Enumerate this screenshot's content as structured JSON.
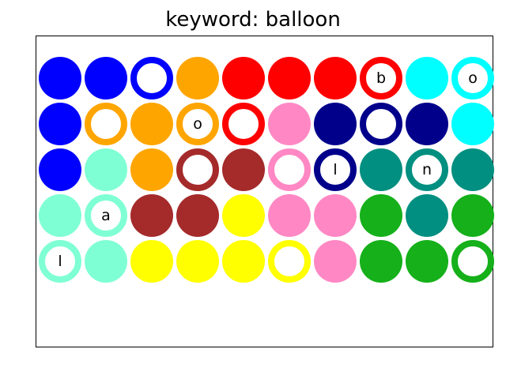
{
  "title": "keyword: balloon",
  "colors": {
    "blue": "#0000ff",
    "orange": "#ffa500",
    "red": "#ff0000",
    "cyan": "#00ffff",
    "navy": "#00008b",
    "pink": "#ff88c4",
    "aquamarine": "#7fffd4",
    "brown": "#a52a2a",
    "teal": "#008f80",
    "yellow": "#ffff00",
    "green": "#15b01a"
  },
  "grid": [
    [
      {
        "color": "blue",
        "style": "filled",
        "letter": ""
      },
      {
        "color": "blue",
        "style": "filled",
        "letter": ""
      },
      {
        "color": "blue",
        "style": "ring",
        "letter": ""
      },
      {
        "color": "orange",
        "style": "filled",
        "letter": ""
      },
      {
        "color": "red",
        "style": "filled",
        "letter": ""
      },
      {
        "color": "red",
        "style": "filled",
        "letter": ""
      },
      {
        "color": "red",
        "style": "filled",
        "letter": ""
      },
      {
        "color": "red",
        "style": "ring",
        "letter": "b"
      },
      {
        "color": "cyan",
        "style": "filled",
        "letter": ""
      },
      {
        "color": "cyan",
        "style": "ring",
        "letter": "o"
      }
    ],
    [
      {
        "color": "blue",
        "style": "filled",
        "letter": ""
      },
      {
        "color": "orange",
        "style": "ring",
        "letter": ""
      },
      {
        "color": "orange",
        "style": "filled",
        "letter": ""
      },
      {
        "color": "orange",
        "style": "ring",
        "letter": "o"
      },
      {
        "color": "red",
        "style": "ring",
        "letter": ""
      },
      {
        "color": "pink",
        "style": "filled",
        "letter": ""
      },
      {
        "color": "navy",
        "style": "filled",
        "letter": ""
      },
      {
        "color": "navy",
        "style": "ring",
        "letter": ""
      },
      {
        "color": "navy",
        "style": "filled",
        "letter": ""
      },
      {
        "color": "cyan",
        "style": "filled",
        "letter": ""
      }
    ],
    [
      {
        "color": "blue",
        "style": "filled",
        "letter": ""
      },
      {
        "color": "aquamarine",
        "style": "filled",
        "letter": ""
      },
      {
        "color": "orange",
        "style": "filled",
        "letter": ""
      },
      {
        "color": "brown",
        "style": "ring",
        "letter": ""
      },
      {
        "color": "brown",
        "style": "filled",
        "letter": ""
      },
      {
        "color": "pink",
        "style": "ring",
        "letter": ""
      },
      {
        "color": "navy",
        "style": "ring",
        "letter": "l"
      },
      {
        "color": "teal",
        "style": "filled",
        "letter": ""
      },
      {
        "color": "teal",
        "style": "ring",
        "letter": "n"
      },
      {
        "color": "teal",
        "style": "filled",
        "letter": ""
      }
    ],
    [
      {
        "color": "aquamarine",
        "style": "filled",
        "letter": ""
      },
      {
        "color": "aquamarine",
        "style": "ring",
        "letter": "a"
      },
      {
        "color": "brown",
        "style": "filled",
        "letter": ""
      },
      {
        "color": "brown",
        "style": "filled",
        "letter": ""
      },
      {
        "color": "yellow",
        "style": "filled",
        "letter": ""
      },
      {
        "color": "pink",
        "style": "filled",
        "letter": ""
      },
      {
        "color": "pink",
        "style": "filled",
        "letter": ""
      },
      {
        "color": "green",
        "style": "filled",
        "letter": ""
      },
      {
        "color": "teal",
        "style": "filled",
        "letter": ""
      },
      {
        "color": "green",
        "style": "filled",
        "letter": ""
      }
    ],
    [
      {
        "color": "aquamarine",
        "style": "ring",
        "letter": "l"
      },
      {
        "color": "aquamarine",
        "style": "filled",
        "letter": ""
      },
      {
        "color": "yellow",
        "style": "filled",
        "letter": ""
      },
      {
        "color": "yellow",
        "style": "filled",
        "letter": ""
      },
      {
        "color": "yellow",
        "style": "filled",
        "letter": ""
      },
      {
        "color": "yellow",
        "style": "ring",
        "letter": ""
      },
      {
        "color": "pink",
        "style": "filled",
        "letter": ""
      },
      {
        "color": "green",
        "style": "filled",
        "letter": ""
      },
      {
        "color": "green",
        "style": "filled",
        "letter": ""
      },
      {
        "color": "green",
        "style": "ring",
        "letter": ""
      }
    ]
  ]
}
